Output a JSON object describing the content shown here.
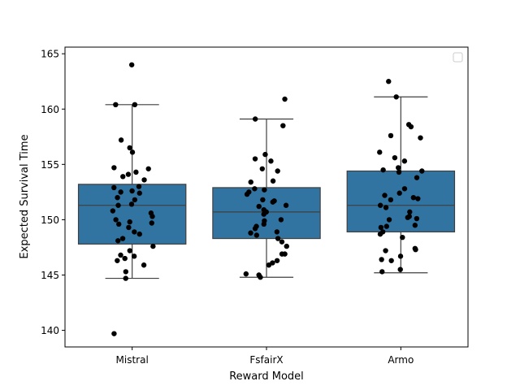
{
  "chart_data": {
    "type": "box",
    "xlabel": "Reward Model",
    "ylabel": "Expected Survival Time",
    "ylim": [
      138.5,
      165.6
    ],
    "yticks": [
      140,
      145,
      150,
      155,
      160,
      165
    ],
    "categories": [
      "Mistral",
      "FsfairX",
      "Armo"
    ],
    "legend": {
      "placement": "top-right",
      "entries": []
    },
    "grid": false,
    "colors": {
      "box": "#3274a1",
      "box_edge": "#3f3f3f",
      "point": "#000000"
    },
    "boxes": [
      {
        "category": "Mistral",
        "whisker_low": 144.7,
        "q1": 147.8,
        "median": 151.3,
        "q3": 153.2,
        "whisker_high": 160.4
      },
      {
        "category": "FsfairX",
        "whisker_low": 144.8,
        "q1": 148.3,
        "median": 150.7,
        "q3": 152.9,
        "whisker_high": 159.1
      },
      {
        "category": "Armo",
        "whisker_low": 145.2,
        "q1": 148.9,
        "median": 151.3,
        "q3": 154.4,
        "whisker_high": 161.1
      }
    ],
    "points": [
      {
        "category": "Mistral",
        "values": [
          164.0,
          160.4,
          160.4,
          157.2,
          156.5,
          156.1,
          154.7,
          154.6,
          154.3,
          154.1,
          153.9,
          153.6,
          153.0,
          152.9,
          152.6,
          152.5,
          152.4,
          152.0,
          151.8,
          151.4,
          151.3,
          150.8,
          150.6,
          150.3,
          150.0,
          149.8,
          149.7,
          149.6,
          149.3,
          148.9,
          148.7,
          148.3,
          148.1,
          147.6,
          147.2,
          146.8,
          146.7,
          146.5,
          146.3,
          145.9,
          145.3,
          144.7,
          139.7
        ]
      },
      {
        "category": "FsfairX",
        "values": [
          160.9,
          159.1,
          158.5,
          155.9,
          155.5,
          155.3,
          154.6,
          154.4,
          153.5,
          153.4,
          152.8,
          152.7,
          152.5,
          152.3,
          151.8,
          151.7,
          151.6,
          151.3,
          151.2,
          150.9,
          150.7,
          150.5,
          150.0,
          149.9,
          149.6,
          149.4,
          149.2,
          148.9,
          148.8,
          148.6,
          148.3,
          148.0,
          147.6,
          146.9,
          146.9,
          146.3,
          146.1,
          145.9,
          145.1,
          145.0,
          144.8
        ]
      },
      {
        "category": "Armo",
        "values": [
          162.5,
          161.1,
          158.6,
          158.4,
          157.6,
          157.4,
          156.1,
          155.6,
          155.3,
          154.7,
          154.5,
          154.4,
          154.3,
          153.8,
          152.8,
          152.4,
          152.2,
          152.0,
          151.9,
          151.8,
          151.3,
          151.1,
          150.7,
          150.3,
          150.2,
          150.1,
          150.0,
          149.5,
          149.4,
          149.3,
          148.9,
          148.7,
          148.4,
          147.4,
          147.3,
          147.2,
          146.7,
          146.4,
          146.3,
          145.5,
          145.3
        ]
      }
    ]
  }
}
